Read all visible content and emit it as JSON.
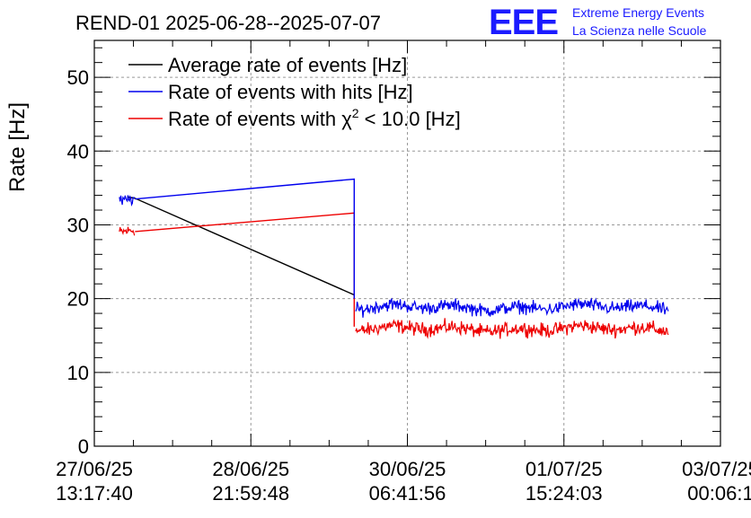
{
  "chart_data": {
    "type": "line",
    "title": "REND-01 2025-06-28--2025-07-07",
    "ylabel": "Rate [Hz]",
    "xlabel": "",
    "ylim": [
      0,
      55
    ],
    "yticks": [
      0,
      10,
      20,
      30,
      40,
      50
    ],
    "xlim": [
      0,
      4
    ],
    "xticks": [
      {
        "value": 0,
        "line1": "27/06/25",
        "line2": "13:17:40"
      },
      {
        "value": 1,
        "line1": "28/06/25",
        "line2": "21:59:48"
      },
      {
        "value": 2,
        "line1": "30/06/25",
        "line2": "06:41:56"
      },
      {
        "value": 3,
        "line1": "01/07/25",
        "line2": "15:24:03"
      },
      {
        "value": 4,
        "line1": "03/07/25",
        "line2": "00:06:1"
      }
    ],
    "grid": true,
    "legend_position": "top-left",
    "series": [
      {
        "name": "Average rate of events [Hz]",
        "color": "#000000",
        "segments": [
          {
            "x": [
              0.21,
              0.26,
              1.66
            ],
            "y": [
              33.8,
              33.6,
              20.5
            ]
          }
        ]
      },
      {
        "name": "Rate of events with hits [Hz]",
        "color": "#0000ee",
        "noisy_segments": [
          {
            "x_start": 0.16,
            "x_end": 0.26,
            "mean": 33.5,
            "amp": 1.2
          },
          {
            "x_start": 1.67,
            "x_end": 3.67,
            "mean": 18.8,
            "amp": 1.3
          }
        ],
        "segments": [
          {
            "x": [
              0.26,
              1.66,
              1.66
            ],
            "y": [
              33.5,
              36.2,
              20.0
            ]
          }
        ]
      },
      {
        "name": "Rate of events with χ² < 10.0 [Hz]",
        "color": "#ee0000",
        "noisy_segments": [
          {
            "x_start": 0.16,
            "x_end": 0.26,
            "mean": 29.3,
            "amp": 1.2
          },
          {
            "x_start": 1.67,
            "x_end": 3.67,
            "mean": 15.9,
            "amp": 1.4
          }
        ],
        "segments": [
          {
            "x": [
              0.26,
              1.66,
              1.66
            ],
            "y": [
              29.1,
              31.6,
              16.2
            ]
          }
        ]
      }
    ],
    "legend": [
      {
        "prefix": "Average rate of events [Hz]",
        "sup": "",
        "suffix": "",
        "color": "#000000"
      },
      {
        "prefix": "Rate of events with hits [Hz]",
        "sup": "",
        "suffix": "",
        "color": "#0000ee"
      },
      {
        "prefix": "Rate of events with χ",
        "sup": "2",
        "suffix": " < 10.0 [Hz]",
        "color": "#ee0000"
      }
    ]
  },
  "logo": {
    "text": "EEE",
    "line1": "Extreme Energy Events",
    "line2": "La Scienza nelle Scuole",
    "color": "#1a1aff"
  }
}
